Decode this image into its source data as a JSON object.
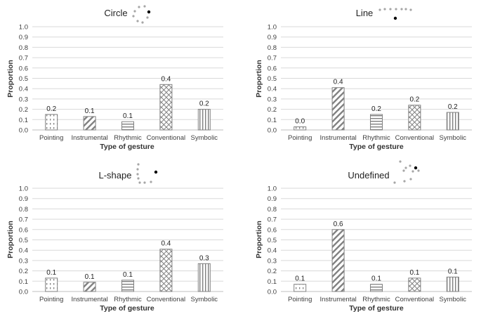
{
  "chart_data": [
    {
      "type": "bar",
      "title": "Circle",
      "xlabel": "Type of gesture",
      "ylabel": "Proportion",
      "ylim": [
        0,
        1.0
      ],
      "yticks": [
        "0.0",
        "0.1",
        "0.2",
        "0.3",
        "0.4",
        "0.5",
        "0.6",
        "0.7",
        "0.8",
        "0.9",
        "1.0"
      ],
      "categories": [
        "Pointing",
        "Instrumental",
        "Rhythmic",
        "Conventional",
        "Symbolic"
      ],
      "values": [
        0.15,
        0.13,
        0.08,
        0.44,
        0.2
      ],
      "data_labels": [
        "0.2",
        "0.1",
        "0.1",
        "0.4",
        "0.2"
      ],
      "patterns": [
        "dots",
        "diag",
        "horiz",
        "cross",
        "vert"
      ]
    },
    {
      "type": "bar",
      "title": "Line",
      "xlabel": "Type of gesture",
      "ylabel": "Proportion",
      "ylim": [
        0,
        1.0
      ],
      "yticks": [
        "0.0",
        "0.1",
        "0.2",
        "0.3",
        "0.4",
        "0.5",
        "0.6",
        "0.7",
        "0.8",
        "0.9",
        "1.0"
      ],
      "categories": [
        "Pointing",
        "Instrumental",
        "Rhythmic",
        "Conventional",
        "Symbolic"
      ],
      "values": [
        0.03,
        0.41,
        0.15,
        0.24,
        0.17
      ],
      "data_labels": [
        "0.0",
        "0.4",
        "0.2",
        "0.2",
        "0.2"
      ],
      "patterns": [
        "dots",
        "diag",
        "horiz",
        "cross",
        "vert"
      ]
    },
    {
      "type": "bar",
      "title": "L-shape",
      "xlabel": "Type of gesture",
      "ylabel": "Proportion",
      "ylim": [
        0,
        1.0
      ],
      "yticks": [
        "0.0",
        "0.1",
        "0.2",
        "0.3",
        "0.4",
        "0.5",
        "0.6",
        "0.7",
        "0.8",
        "0.9",
        "1.0"
      ],
      "categories": [
        "Pointing",
        "Instrumental",
        "Rhythmic",
        "Conventional",
        "Symbolic"
      ],
      "values": [
        0.13,
        0.09,
        0.11,
        0.41,
        0.27
      ],
      "data_labels": [
        "0.1",
        "0.1",
        "0.1",
        "0.4",
        "0.3"
      ],
      "patterns": [
        "dots",
        "diag",
        "horiz",
        "cross",
        "vert"
      ]
    },
    {
      "type": "bar",
      "title": "Undefined",
      "xlabel": "Type of gesture",
      "ylabel": "Proportion",
      "ylim": [
        0,
        1.0
      ],
      "yticks": [
        "0.0",
        "0.1",
        "0.2",
        "0.3",
        "0.4",
        "0.5",
        "0.6",
        "0.7",
        "0.8",
        "0.9",
        "1.0"
      ],
      "categories": [
        "Pointing",
        "Instrumental",
        "Rhythmic",
        "Conventional",
        "Symbolic"
      ],
      "values": [
        0.07,
        0.6,
        0.07,
        0.13,
        0.14
      ],
      "data_labels": [
        "0.1",
        "0.6",
        "0.1",
        "0.1",
        "0.1"
      ],
      "patterns": [
        "dots",
        "diag",
        "horiz",
        "cross",
        "vert"
      ]
    }
  ],
  "colors": {
    "bar_stroke": "#808080",
    "pattern": "#808080",
    "grid": "#d9d9d9",
    "trajectory_dot": "#a6a6a6",
    "trajectory_end": "#000000"
  }
}
